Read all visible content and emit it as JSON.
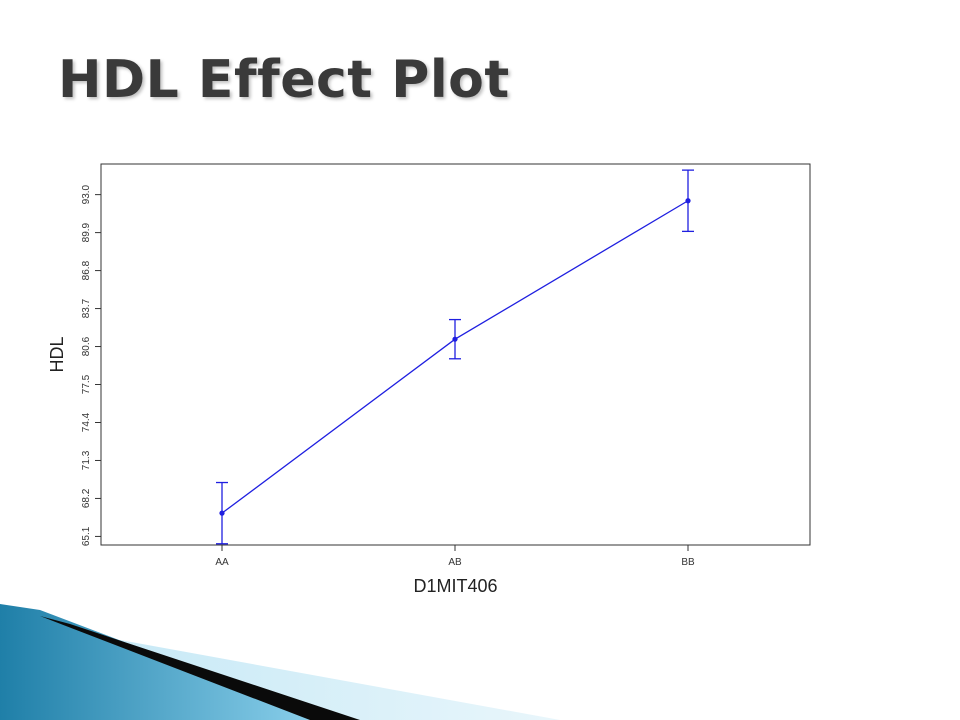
{
  "slide": {
    "title": "HDL Effect Plot"
  },
  "colors": {
    "series": "#1f1fe0",
    "frame": "#333333",
    "title_text": "#3a3a3a",
    "decor_blue_dark": "#1f7fa8",
    "decor_blue_light": "#8fd3ee",
    "decor_black": "#0a0a0a"
  },
  "chart_data": {
    "type": "line",
    "title": "",
    "xlabel": "D1MIT406",
    "ylabel": "HDL",
    "categories": [
      "AA",
      "AB",
      "BB"
    ],
    "series": [
      {
        "values": [
          67.0,
          81.2,
          92.5
        ],
        "lower": [
          64.5,
          79.6,
          90.0
        ],
        "upper": [
          69.5,
          82.8,
          95.0
        ]
      }
    ],
    "yticks": [
      "65.1",
      "68.2",
      "71.3",
      "74.4",
      "77.5",
      "80.6",
      "83.7",
      "86.8",
      "89.9",
      "93.0"
    ],
    "ylim": [
      64.4,
      95.5
    ],
    "grid": false,
    "legend": "none"
  }
}
